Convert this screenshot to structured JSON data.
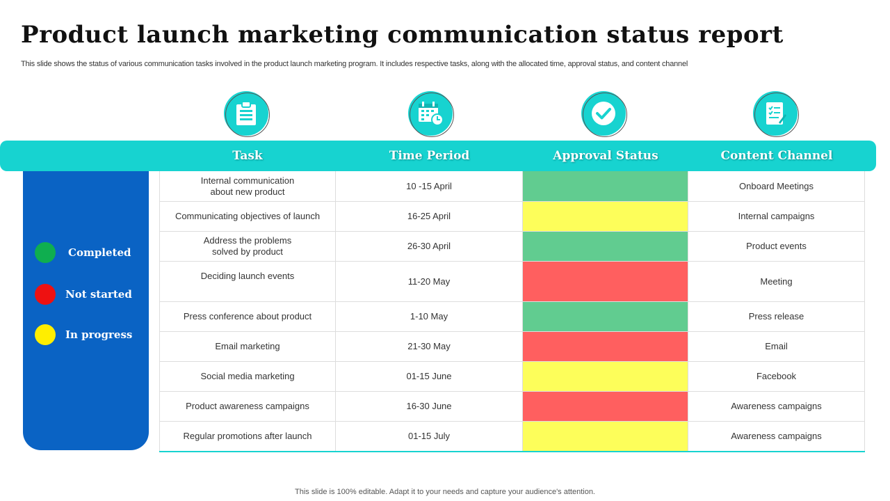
{
  "title": "Product launch marketing communication status report",
  "subtitle": "This slide shows the status of various communication tasks involved in the product launch marketing program. It includes respective tasks, along with the allocated time, approval status, and content channel",
  "colors": {
    "completed": "#61cc90",
    "not_started": "#ff5f5f",
    "in_progress": "#fdfe5a",
    "legend_completed": "#0fae4f",
    "legend_not_started": "#ee1111",
    "legend_in_progress": "#ffee00"
  },
  "legend": [
    {
      "label": "Completed",
      "status": "completed"
    },
    {
      "label": "Not started",
      "status": "not_started"
    },
    {
      "label": "In progress",
      "status": "in_progress"
    }
  ],
  "columns": [
    {
      "label": "Task",
      "icon": "clipboard-icon"
    },
    {
      "label": "Time Period",
      "icon": "calendar-clock-icon"
    },
    {
      "label": "Approval Status",
      "icon": "checkmark-icon"
    },
    {
      "label": "Content Channel",
      "icon": "checklist-document-icon"
    }
  ],
  "rows": [
    {
      "task": "Internal communication\nabout new product",
      "time": "10 -15 April",
      "status": "completed",
      "channel": "Onboard Meetings"
    },
    {
      "task": "Communicating objectives of launch",
      "time": "16-25 April",
      "status": "in_progress",
      "channel": "Internal campaigns"
    },
    {
      "task": "Address the problems\nsolved by product",
      "time": "26-30 April",
      "status": "completed",
      "channel": "Product events"
    },
    {
      "task": "Deciding launch events",
      "time": "11-20 May",
      "status": "not_started",
      "channel": "Meeting"
    },
    {
      "task": "Press conference about product",
      "time": "1-10 May",
      "status": "completed",
      "channel": "Press release"
    },
    {
      "task": "Email marketing",
      "time": "21-30 May",
      "status": "not_started",
      "channel": "Email"
    },
    {
      "task": "Social media marketing",
      "time": "01-15 June",
      "status": "in_progress",
      "channel": "Facebook"
    },
    {
      "task": "Product awareness campaigns",
      "time": "16-30 June",
      "status": "not_started",
      "channel": "Awareness campaigns"
    },
    {
      "task": "Regular promotions after launch",
      "time": "01-15 July",
      "status": "in_progress",
      "channel": "Awareness campaigns"
    }
  ],
  "footer": "This slide is 100% editable. Adapt it to your needs and capture your audience's attention."
}
